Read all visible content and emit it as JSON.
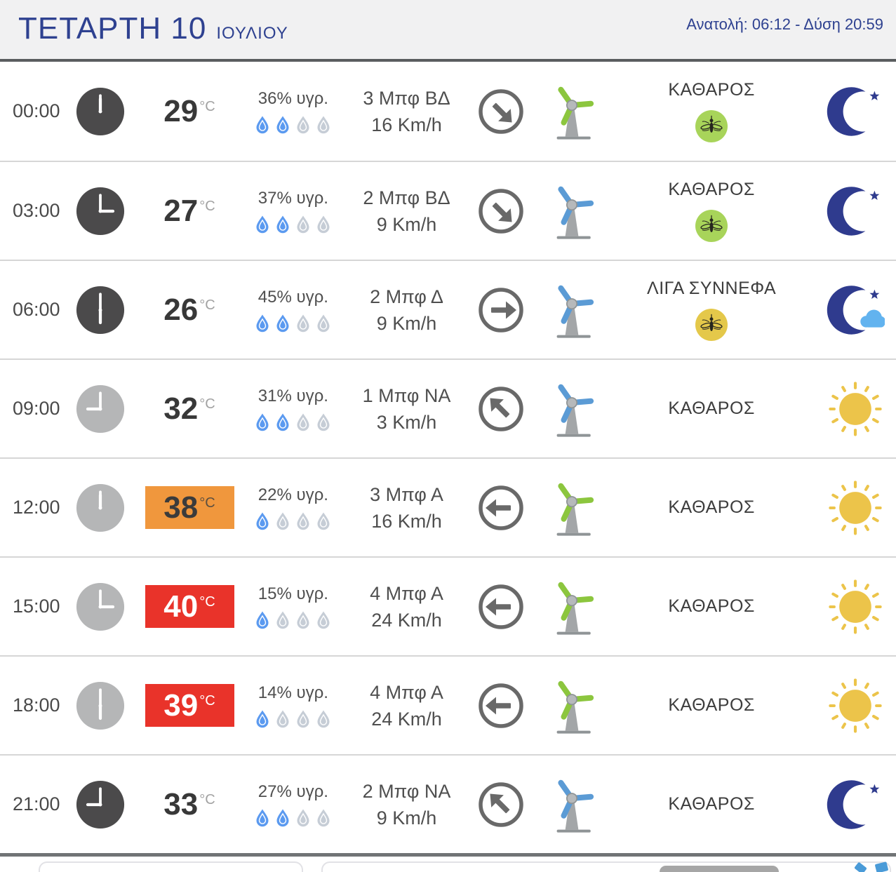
{
  "header": {
    "day": "ΤΕΤΑΡΤΗ 10",
    "month": "ΙΟΥΛΙΟΥ",
    "sun_times": "Ανατολή: 06:12  - Δύση 20:59"
  },
  "rows": [
    {
      "time": "00:00",
      "clock": "dark",
      "clock_hour_deg": 0,
      "temp": "29",
      "temp_unit": "°C",
      "temp_badge": "none",
      "humidity": "36% υγρ.",
      "drops_filled": 2,
      "wind": "3 Μπφ ΒΔ",
      "kmh": "16 Km/h",
      "arrow_deg": 135,
      "turbine": "green",
      "condition": "ΚΑΘΑΡΟΣ",
      "mosquito": "green",
      "sky_icon": "moon"
    },
    {
      "time": "03:00",
      "clock": "dark",
      "clock_hour_deg": 90,
      "temp": "27",
      "temp_unit": "°C",
      "temp_badge": "none",
      "humidity": "37% υγρ.",
      "drops_filled": 2,
      "wind": "2 Μπφ ΒΔ",
      "kmh": "9 Km/h",
      "arrow_deg": 135,
      "turbine": "blue",
      "condition": "ΚΑΘΑΡΟΣ",
      "mosquito": "green",
      "sky_icon": "moon"
    },
    {
      "time": "06:00",
      "clock": "dark",
      "clock_hour_deg": 180,
      "temp": "26",
      "temp_unit": "°C",
      "temp_badge": "none",
      "humidity": "45% υγρ.",
      "drops_filled": 2,
      "wind": "2 Μπφ Δ",
      "kmh": "9 Km/h",
      "arrow_deg": 90,
      "turbine": "blue",
      "condition": "ΛΙΓΑ ΣΥΝΝΕΦΑ",
      "mosquito": "yellow",
      "sky_icon": "moon-cloud"
    },
    {
      "time": "09:00",
      "clock": "light",
      "clock_hour_deg": 270,
      "temp": "32",
      "temp_unit": "°C",
      "temp_badge": "none",
      "humidity": "31% υγρ.",
      "drops_filled": 2,
      "wind": "1 Μπφ ΝΑ",
      "kmh": "3 Km/h",
      "arrow_deg": 315,
      "turbine": "blue",
      "condition": "ΚΑΘΑΡΟΣ",
      "mosquito": "none",
      "sky_icon": "sun"
    },
    {
      "time": "12:00",
      "clock": "light",
      "clock_hour_deg": 0,
      "temp": "38",
      "temp_unit": "°C",
      "temp_badge": "orange",
      "humidity": "22% υγρ.",
      "drops_filled": 1,
      "wind": "3 Μπφ Α",
      "kmh": "16 Km/h",
      "arrow_deg": 270,
      "turbine": "green",
      "condition": "ΚΑΘΑΡΟΣ",
      "mosquito": "none",
      "sky_icon": "sun"
    },
    {
      "time": "15:00",
      "clock": "light",
      "clock_hour_deg": 90,
      "temp": "40",
      "temp_unit": "°C",
      "temp_badge": "red",
      "humidity": "15% υγρ.",
      "drops_filled": 1,
      "wind": "4 Μπφ Α",
      "kmh": "24 Km/h",
      "arrow_deg": 270,
      "turbine": "green",
      "condition": "ΚΑΘΑΡΟΣ",
      "mosquito": "none",
      "sky_icon": "sun"
    },
    {
      "time": "18:00",
      "clock": "light",
      "clock_hour_deg": 180,
      "temp": "39",
      "temp_unit": "°C",
      "temp_badge": "red",
      "humidity": "14% υγρ.",
      "drops_filled": 1,
      "wind": "4 Μπφ Α",
      "kmh": "24 Km/h",
      "arrow_deg": 270,
      "turbine": "green",
      "condition": "ΚΑΘΑΡΟΣ",
      "mosquito": "none",
      "sky_icon": "sun"
    },
    {
      "time": "21:00",
      "clock": "dark",
      "clock_hour_deg": 270,
      "temp": "33",
      "temp_unit": "°C",
      "temp_badge": "none",
      "humidity": "27% υγρ.",
      "drops_filled": 2,
      "wind": "2 Μπφ ΝΑ",
      "kmh": "9 Km/h",
      "arrow_deg": 315,
      "turbine": "blue",
      "condition": "ΚΑΘΑΡΟΣ",
      "mosquito": "none",
      "sky_icon": "moon"
    }
  ],
  "colors": {
    "accent_blue": "#2e4190",
    "badge_orange": "#f0973d",
    "badge_red": "#e9332a",
    "drop_blue": "#5b9af0",
    "drop_gray": "#c6cdd6",
    "turbine_green": "#8cc63e",
    "turbine_blue": "#5b9bd5",
    "mosquito_green": "#a8d45a",
    "mosquito_yellow": "#e4c84a",
    "moon_navy": "#2f3b8e",
    "cloud_blue": "#62b3ef",
    "sun_yellow": "#ecc44a"
  }
}
